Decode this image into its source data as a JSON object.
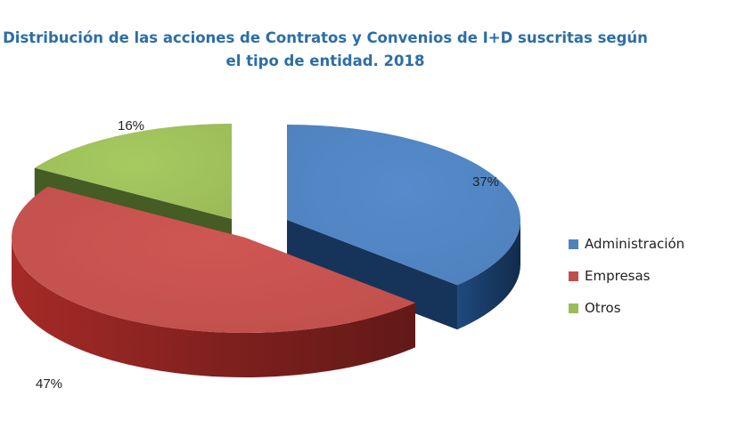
{
  "chart_data": {
    "type": "pie",
    "title_line1": "Distribución de las acciones de Contratos y Convenios de I+D suscritas según",
    "title_line2": "el tipo de entidad. 2018",
    "slices": [
      {
        "name": "Administración",
        "value": 37,
        "label": "37%",
        "color": "#4f81bd",
        "side_color": "#17375e"
      },
      {
        "name": "Empresas",
        "value": 47,
        "label": "47%",
        "color": "#c0504d",
        "side_color": "#7a1f1d"
      },
      {
        "name": "Otros",
        "value": 16,
        "label": "16%",
        "color": "#9bbb59",
        "side_color": "#3d5020"
      }
    ],
    "style": "3d-exploded",
    "legend_position": "right"
  }
}
